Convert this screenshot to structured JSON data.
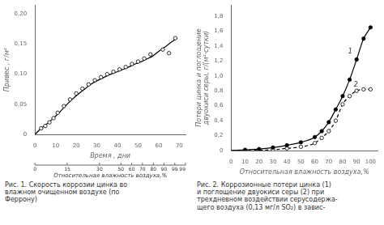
{
  "chart_data": [
    {
      "type": "line",
      "xlabel": "Время , дни",
      "ylabel": "Привес , г/м²",
      "xlabel2": "Относительная влажность воздуха,%",
      "x2tick_labels": [
        "0",
        "15",
        "30",
        "50",
        "60",
        "70",
        "80",
        "90",
        "99",
        "99"
      ],
      "caption": "Рис. 1. Скорость коррозии цинка во\nвлажном очищенном воздухе (по\nФеррону)",
      "xlim": [
        0,
        73
      ],
      "ylim": [
        0,
        0.215
      ],
      "xticks": [
        0,
        10,
        20,
        30,
        40,
        50,
        60,
        70
      ],
      "yticks": [
        0,
        {
          "value": 0.05,
          "label": "0,05"
        },
        {
          "value": 0.1,
          "label": "0,10"
        },
        {
          "value": 0.15,
          "label": "0,15"
        },
        {
          "value": 0.2,
          "label": "0,20"
        }
      ],
      "grid": false,
      "series": [
        {
          "type": "line",
          "line_style": "solid",
          "color": "#000000",
          "x": [
            0,
            3,
            6,
            9,
            12,
            15,
            18,
            21,
            24,
            27,
            30,
            33,
            36,
            39,
            42,
            45,
            48,
            51,
            54,
            57,
            60,
            63,
            66,
            69
          ],
          "values": [
            0.0,
            0.01,
            0.018,
            0.027,
            0.037,
            0.048,
            0.058,
            0.067,
            0.075,
            0.083,
            0.089,
            0.094,
            0.099,
            0.103,
            0.107,
            0.111,
            0.116,
            0.12,
            0.125,
            0.13,
            0.138,
            0.145,
            0.153,
            0.16
          ]
        },
        {
          "type": "scatter",
          "marker": "circle_open",
          "color": "#000000",
          "x": [
            3,
            5,
            7,
            9,
            11,
            14,
            17,
            20,
            23,
            26,
            29,
            32,
            35,
            38,
            41,
            44,
            47,
            50,
            53,
            56,
            62,
            65,
            68
          ],
          "values": [
            0.01,
            0.014,
            0.02,
            0.027,
            0.036,
            0.047,
            0.058,
            0.068,
            0.076,
            0.083,
            0.09,
            0.095,
            0.1,
            0.104,
            0.108,
            0.112,
            0.117,
            0.121,
            0.126,
            0.133,
            0.141,
            0.135,
            0.16
          ]
        }
      ]
    },
    {
      "type": "line",
      "xlabel": "Относительная влажность воздуха,%",
      "ylabel": [
        "Потери цинка и поглощение",
        "двуокиси серы, г/(м²·сутки)"
      ],
      "caption": "Рис. 2. Коррозионные потери цинка (1)\nи поглощение двуокиси серы (2) при\nтрехдневном воздействии серусодержа-\nщего воздуха (0,13 мг/л SO₂) в завис-",
      "xlim": [
        0,
        105
      ],
      "ylim": [
        0,
        1.95
      ],
      "xticks": [
        0,
        10,
        20,
        30,
        40,
        50,
        60,
        70,
        80,
        90,
        100
      ],
      "yticks": [
        0,
        {
          "value": 0.2,
          "label": "0,2"
        },
        {
          "value": 0.4,
          "label": "0,4"
        },
        {
          "value": 0.6,
          "label": "0,6"
        },
        {
          "value": 0.8,
          "label": "0,8"
        },
        {
          "value": 1.0,
          "label": "1,0"
        },
        {
          "value": 1.2,
          "label": "1,2"
        },
        {
          "value": 1.4,
          "label": "1,4"
        },
        {
          "value": 1.6,
          "label": "1,6"
        },
        {
          "value": 1.8,
          "label": "1,8"
        }
      ],
      "grid": false,
      "annotations": [
        {
          "text": "1",
          "x": 84,
          "y": 1.3
        },
        {
          "text": "2",
          "x": 88,
          "y": 0.86
        }
      ],
      "series": [
        {
          "type": "line",
          "line_style": "solid",
          "color": "#000000",
          "x": [
            0,
            10,
            20,
            30,
            40,
            50,
            60,
            65,
            70,
            75,
            80,
            85,
            90,
            95,
            100
          ],
          "values": [
            0.0,
            0.01,
            0.02,
            0.04,
            0.07,
            0.11,
            0.18,
            0.26,
            0.38,
            0.55,
            0.73,
            0.95,
            1.22,
            1.5,
            1.65
          ]
        },
        {
          "type": "line",
          "line_style": "dashed",
          "color": "#000000",
          "x": [
            0,
            30,
            40,
            50,
            60,
            65,
            70,
            75,
            80,
            85,
            90,
            95,
            100
          ],
          "values": [
            0.0,
            0.01,
            0.03,
            0.05,
            0.1,
            0.17,
            0.26,
            0.4,
            0.62,
            0.73,
            0.8,
            0.82,
            0.82
          ]
        },
        {
          "type": "scatter",
          "marker": "circle",
          "color": "#000000",
          "x": [
            10,
            20,
            30,
            40,
            50,
            60,
            65,
            70,
            75,
            80,
            85,
            90,
            95,
            100
          ],
          "values": [
            0.01,
            0.02,
            0.04,
            0.07,
            0.11,
            0.18,
            0.26,
            0.38,
            0.55,
            0.73,
            0.95,
            1.22,
            1.5,
            1.65
          ]
        },
        {
          "type": "scatter",
          "marker": "circle_open",
          "color": "#000000",
          "x": [
            30,
            40,
            50,
            60,
            65,
            70,
            75,
            80,
            85,
            90,
            95,
            100
          ],
          "values": [
            0.01,
            0.03,
            0.05,
            0.1,
            0.17,
            0.26,
            0.4,
            0.62,
            0.73,
            0.8,
            0.82,
            0.82
          ]
        }
      ]
    }
  ]
}
